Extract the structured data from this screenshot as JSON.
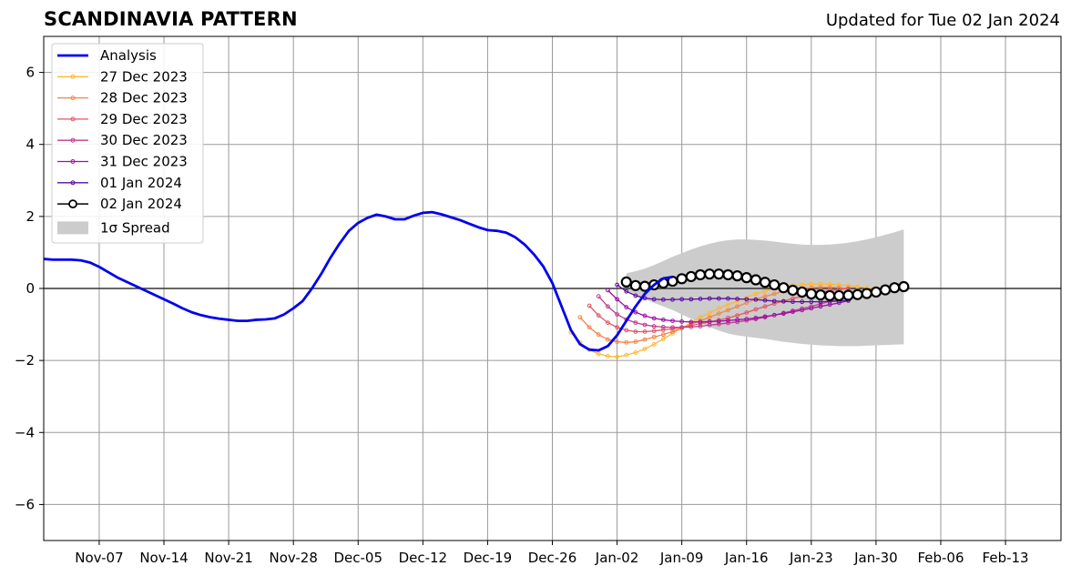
{
  "chart_data": {
    "type": "line",
    "title": "SCANDINAVIA PATTERN",
    "subtitle": "Updated for Tue 02 Jan 2024",
    "xlabel": "",
    "ylabel": "",
    "ylim": [
      -7,
      7
    ],
    "yticks": [
      -6,
      -4,
      -2,
      0,
      2,
      4,
      6
    ],
    "ytick_labels": [
      "−6",
      "−4",
      "−2",
      "0",
      "2",
      "4",
      "6"
    ],
    "xlim": [
      "2023-11-01",
      "2024-02-19"
    ],
    "xticks": [
      {
        "date": "2023-11-07",
        "label": "Nov-07"
      },
      {
        "date": "2023-11-14",
        "label": "Nov-14"
      },
      {
        "date": "2023-11-21",
        "label": "Nov-21"
      },
      {
        "date": "2023-11-28",
        "label": "Nov-28"
      },
      {
        "date": "2023-12-05",
        "label": "Dec-05"
      },
      {
        "date": "2023-12-12",
        "label": "Dec-12"
      },
      {
        "date": "2023-12-19",
        "label": "Dec-19"
      },
      {
        "date": "2023-12-26",
        "label": "Dec-26"
      },
      {
        "date": "2024-01-02",
        "label": "Jan-02"
      },
      {
        "date": "2024-01-09",
        "label": "Jan-09"
      },
      {
        "date": "2024-01-16",
        "label": "Jan-16"
      },
      {
        "date": "2024-01-23",
        "label": "Jan-23"
      },
      {
        "date": "2024-01-30",
        "label": "Jan-30"
      },
      {
        "date": "2024-02-06",
        "label": "Feb-06"
      },
      {
        "date": "2024-02-13",
        "label": "Feb-13"
      }
    ],
    "grid": true,
    "legend_position": "upper-left",
    "analysis": {
      "name": "Analysis",
      "color": "#0000ee",
      "start": "2023-11-01",
      "values": [
        0.82,
        0.8,
        0.8,
        0.8,
        0.78,
        0.72,
        0.6,
        0.45,
        0.3,
        0.18,
        0.06,
        -0.06,
        -0.18,
        -0.3,
        -0.42,
        -0.55,
        -0.66,
        -0.74,
        -0.8,
        -0.84,
        -0.87,
        -0.9,
        -0.9,
        -0.87,
        -0.86,
        -0.83,
        -0.72,
        -0.55,
        -0.35,
        0.0,
        0.4,
        0.85,
        1.25,
        1.6,
        1.82,
        1.96,
        2.05,
        2.0,
        1.92,
        1.92,
        2.02,
        2.1,
        2.12,
        2.06,
        1.98,
        1.9,
        1.8,
        1.7,
        1.62,
        1.6,
        1.55,
        1.42,
        1.22,
        0.95,
        0.62,
        0.15,
        -0.5,
        -1.15,
        -1.55,
        -1.7,
        -1.72,
        -1.6,
        -1.3,
        -0.9,
        -0.5,
        -0.15,
        0.1,
        0.28,
        0.32
      ]
    },
    "series": [
      {
        "name": "27 Dec 2023",
        "color": "#ffb833",
        "start": "2023-12-28",
        "values": [
          -1.22,
          -1.5,
          -1.7,
          -1.82,
          -1.88,
          -1.9,
          -1.85,
          -1.78,
          -1.68,
          -1.55,
          -1.4,
          -1.25,
          -1.1,
          -0.95,
          -0.8,
          -0.68,
          -0.55,
          -0.45,
          -0.35,
          -0.25,
          -0.15,
          -0.08,
          0.0,
          0.05,
          0.08,
          0.1,
          0.12,
          0.12,
          0.12,
          0.1,
          0.08,
          0.05,
          0.02,
          0.0
        ]
      },
      {
        "name": "28 Dec 2023",
        "color": "#f5834a",
        "start": "2023-12-29",
        "values": [
          -0.8,
          -1.08,
          -1.28,
          -1.42,
          -1.48,
          -1.5,
          -1.48,
          -1.42,
          -1.35,
          -1.28,
          -1.2,
          -1.1,
          -1.0,
          -0.9,
          -0.8,
          -0.7,
          -0.6,
          -0.5,
          -0.4,
          -0.3,
          -0.22,
          -0.15,
          -0.08,
          -0.03,
          0.0,
          0.02,
          0.03,
          0.03,
          0.02,
          0.0
        ]
      },
      {
        "name": "29 Dec 2023",
        "color": "#e15664",
        "start": "2023-12-30",
        "values": [
          -0.48,
          -0.75,
          -0.95,
          -1.08,
          -1.16,
          -1.2,
          -1.2,
          -1.18,
          -1.15,
          -1.12,
          -1.08,
          -1.03,
          -0.98,
          -0.93,
          -0.88,
          -0.82,
          -0.75,
          -0.67,
          -0.58,
          -0.5,
          -0.42,
          -0.35,
          -0.28,
          -0.22,
          -0.16,
          -0.1,
          -0.06,
          -0.03,
          0.0
        ]
      },
      {
        "name": "30 Dec 2023",
        "color": "#c23b8d",
        "start": "2023-12-31",
        "values": [
          -0.22,
          -0.5,
          -0.72,
          -0.86,
          -0.95,
          -1.01,
          -1.05,
          -1.07,
          -1.08,
          -1.08,
          -1.07,
          -1.05,
          -1.02,
          -0.99,
          -0.96,
          -0.93,
          -0.89,
          -0.85,
          -0.8,
          -0.74,
          -0.68,
          -0.62,
          -0.56,
          -0.5,
          -0.43,
          -0.36,
          -0.3,
          -0.24
        ]
      },
      {
        "name": "31 Dec 2023",
        "color": "#9c10a6",
        "start": "2024-01-01",
        "values": [
          -0.05,
          -0.3,
          -0.52,
          -0.66,
          -0.76,
          -0.83,
          -0.87,
          -0.9,
          -0.92,
          -0.93,
          -0.93,
          -0.92,
          -0.91,
          -0.89,
          -0.87,
          -0.85,
          -0.82,
          -0.78,
          -0.74,
          -0.7,
          -0.65,
          -0.6,
          -0.55,
          -0.5,
          -0.45,
          -0.4,
          -0.34
        ]
      },
      {
        "name": "01 Jan 2024",
        "color": "#5b0c9e",
        "start": "2024-01-02",
        "values": [
          0.1,
          -0.08,
          -0.2,
          -0.27,
          -0.3,
          -0.31,
          -0.31,
          -0.3,
          -0.3,
          -0.29,
          -0.28,
          -0.28,
          -0.28,
          -0.29,
          -0.3,
          -0.31,
          -0.33,
          -0.35,
          -0.36,
          -0.37,
          -0.37,
          -0.37,
          -0.37,
          -0.36,
          -0.35,
          -0.33
        ]
      },
      {
        "name": "02 Jan 2024",
        "color": "#000000",
        "start": "2024-01-03",
        "values": [
          0.18,
          0.08,
          0.06,
          0.1,
          0.15,
          0.2,
          0.27,
          0.33,
          0.38,
          0.4,
          0.4,
          0.38,
          0.35,
          0.3,
          0.24,
          0.17,
          0.1,
          0.02,
          -0.05,
          -0.1,
          -0.15,
          -0.18,
          -0.2,
          -0.2,
          -0.19,
          -0.17,
          -0.14,
          -0.1,
          -0.04,
          0.02,
          0.05
        ]
      }
    ],
    "spread": {
      "name": "1σ Spread",
      "color": "#cccccc",
      "start": "2024-01-03",
      "upper": [
        0.42,
        0.48,
        0.55,
        0.65,
        0.76,
        0.88,
        0.98,
        1.08,
        1.17,
        1.24,
        1.3,
        1.34,
        1.36,
        1.36,
        1.35,
        1.33,
        1.3,
        1.27,
        1.24,
        1.22,
        1.21,
        1.21,
        1.22,
        1.24,
        1.27,
        1.31,
        1.36,
        1.42,
        1.49,
        1.56,
        1.64
      ],
      "lower": [
        -0.05,
        -0.2,
        -0.3,
        -0.4,
        -0.5,
        -0.6,
        -0.72,
        -0.84,
        -0.96,
        -1.07,
        -1.17,
        -1.25,
        -1.3,
        -1.34,
        -1.37,
        -1.4,
        -1.44,
        -1.48,
        -1.51,
        -1.54,
        -1.56,
        -1.58,
        -1.59,
        -1.6,
        -1.6,
        -1.6,
        -1.59,
        -1.58,
        -1.57,
        -1.56,
        -1.55
      ]
    }
  }
}
